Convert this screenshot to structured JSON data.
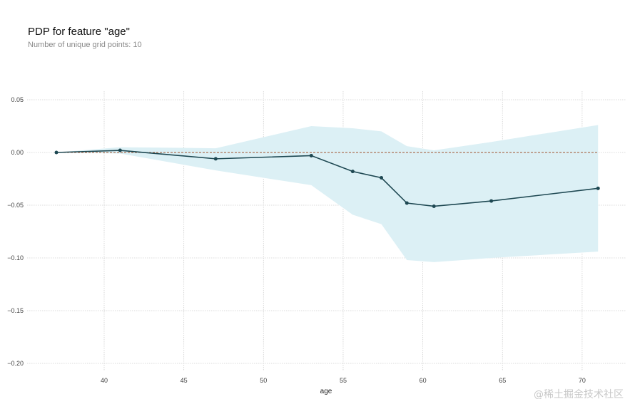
{
  "chart_data": {
    "type": "line",
    "title": "PDP for feature \"age\"",
    "subtitle": "Number of unique grid points: 10",
    "xlabel": "age",
    "ylabel": "",
    "xlim": [
      34,
      74
    ],
    "ylim": [
      -0.21,
      0.055
    ],
    "xticks": [
      40,
      45,
      50,
      55,
      60,
      65,
      70
    ],
    "yticks": [
      0.05,
      0.0,
      -0.05,
      -0.1,
      -0.15,
      -0.2
    ],
    "ytick_labels": [
      "0.05",
      "0.00",
      "−0.05",
      "−0.10",
      "−0.15",
      "−0.20"
    ],
    "grid": true,
    "x": [
      37,
      41,
      47,
      53,
      55.6,
      57.4,
      59,
      60.7,
      64.3,
      71
    ],
    "series": [
      {
        "name": "pdp",
        "values": [
          0.0,
          0.002,
          -0.006,
          -0.003,
          -0.018,
          -0.024,
          -0.048,
          -0.051,
          -0.046,
          -0.034
        ],
        "color": "#1e4852"
      },
      {
        "name": "upper",
        "values": [
          0.0,
          0.005,
          0.004,
          0.025,
          0.023,
          0.02,
          0.006,
          0.002,
          0.01,
          0.026
        ],
        "color": "#dcf0f5"
      },
      {
        "name": "lower",
        "values": [
          0.0,
          -0.001,
          -0.017,
          -0.031,
          -0.059,
          -0.068,
          -0.102,
          -0.104,
          -0.1,
          -0.094
        ],
        "color": "#dcf0f5"
      }
    ],
    "reference_line": {
      "y": 0,
      "color": "#a0522d"
    }
  },
  "watermark": "@稀土掘金技术社区"
}
